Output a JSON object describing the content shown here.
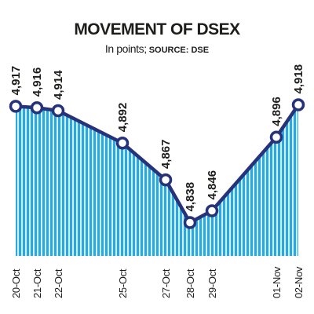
{
  "chart_data": {
    "type": "area",
    "title": "MOVEMENT OF DSEX",
    "subtitle_prefix": "In points;",
    "subtitle_source": "SOURCE: DSE",
    "categories": [
      "20-Oct",
      "21-Oct",
      "22-Oct",
      "25-Oct",
      "27-Oct",
      "28-Oct",
      "29-Oct",
      "01-Nov",
      "02-Nov"
    ],
    "values": [
      4917,
      4916,
      4914,
      4892,
      4867,
      4838,
      4846,
      4896,
      4918
    ],
    "value_labels": [
      "4,917",
      "4,916",
      "4,914",
      "4,892",
      "4,867",
      "4,838",
      "4,846",
      "4,896",
      "4,918"
    ],
    "ylim": [
      4826,
      4922
    ],
    "grid": false,
    "colors": {
      "fill": "#29a9e1",
      "stripe": "#ffffff",
      "line": "#26337a",
      "marker_fill": "#ffffff",
      "text": "#1d1d1b"
    }
  }
}
